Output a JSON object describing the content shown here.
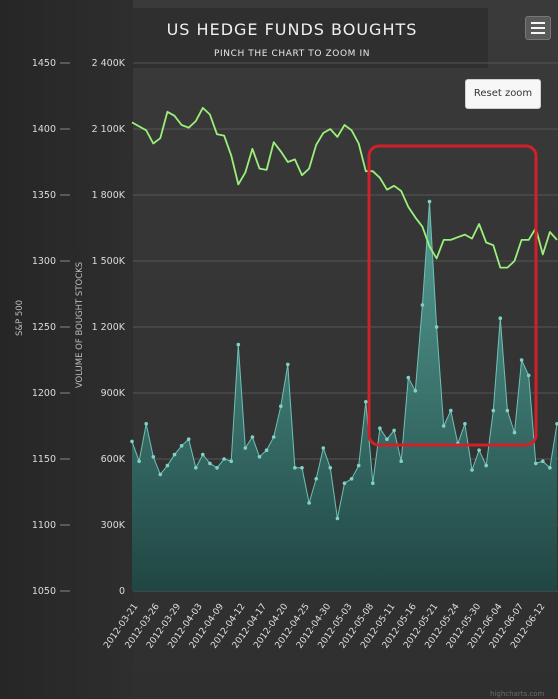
{
  "menu": {
    "icon": "hamburger-menu-icon"
  },
  "reset_zoom_label": "Reset zoom",
  "credit": "highcharts.com",
  "chart_data": {
    "type": "line+area",
    "title": "US HEDGE FUNDS BOUGHTS",
    "subtitle": "PINCH THE CHART TO ZOOM IN",
    "y_axes": [
      {
        "label": "S&P 500",
        "ticks": [
          "1450",
          "1400",
          "1350",
          "1300",
          "1250",
          "1200",
          "1150",
          "1100",
          "1050"
        ],
        "range": [
          1050,
          1450
        ]
      },
      {
        "label": "VOLUME OF BOUGHT STOCKS",
        "ticks": [
          "2 400K",
          "2 100K",
          "1 800K",
          "1 500K",
          "1 200K",
          "900K",
          "600K",
          "300K",
          "0"
        ],
        "range": [
          0,
          2400000
        ]
      }
    ],
    "x_ticks": [
      "2012-03-21",
      "2012-03-26",
      "2012-03-29",
      "2012-04-03",
      "2012-04-09",
      "2012-04-12",
      "2012-04-17",
      "2012-04-20",
      "2012-04-25",
      "2012-04-30",
      "2012-05-03",
      "2012-05-08",
      "2012-05-11",
      "2012-05-16",
      "2012-05-21",
      "2012-05-24",
      "2012-05-30",
      "2012-06-04",
      "2012-06-07",
      "2012-06-12"
    ],
    "series": [
      {
        "name": "S&P 500",
        "color": "#9af07a",
        "values": [
          1405,
          1402,
          1399,
          1389,
          1393,
          1413,
          1410,
          1403,
          1401,
          1406,
          1416,
          1411,
          1396,
          1395,
          1380,
          1358,
          1367,
          1385,
          1370,
          1369,
          1390,
          1383,
          1375,
          1377,
          1365,
          1370,
          1388,
          1397,
          1400,
          1394,
          1403,
          1399,
          1389,
          1368,
          1368,
          1363,
          1354,
          1357,
          1353,
          1341,
          1333,
          1326,
          1311,
          1302,
          1316,
          1316,
          1318,
          1320,
          1317,
          1328,
          1314,
          1312,
          1295,
          1295,
          1300,
          1316,
          1316,
          1325,
          1305,
          1322,
          1316
        ]
      },
      {
        "name": "Volume of bought stocks",
        "color": "#3f8f86",
        "values": [
          680000,
          590000,
          760000,
          610000,
          530000,
          570000,
          620000,
          660000,
          690000,
          560000,
          620000,
          580000,
          560000,
          600000,
          590000,
          1120000,
          650000,
          700000,
          610000,
          640000,
          700000,
          840000,
          1030000,
          560000,
          560000,
          400000,
          510000,
          650000,
          560000,
          330000,
          490000,
          510000,
          570000,
          860000,
          490000,
          740000,
          690000,
          730000,
          590000,
          970000,
          910000,
          1300000,
          1770000,
          1200000,
          750000,
          820000,
          670000,
          760000,
          550000,
          640000,
          570000,
          820000,
          1240000,
          820000,
          720000,
          1050000,
          980000,
          580000,
          590000,
          560000,
          760000
        ]
      }
    ],
    "annotation": {
      "type": "highlight-rectangle",
      "color": "#d0202a"
    }
  }
}
